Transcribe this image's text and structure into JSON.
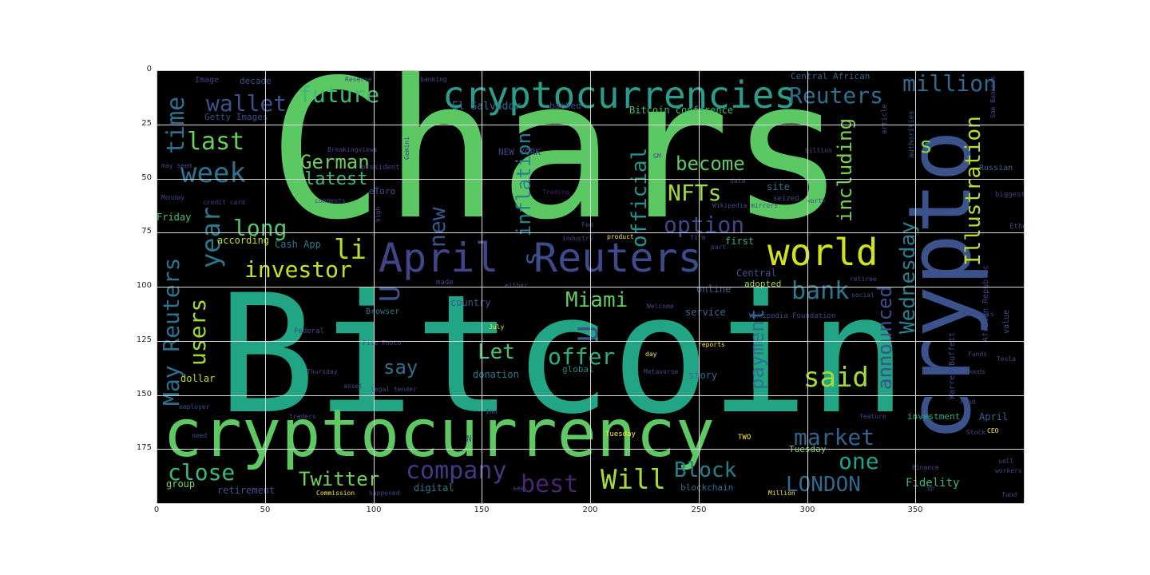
{
  "axes": {
    "x_ticks": [
      "0",
      "50",
      "100",
      "150",
      "200",
      "250",
      "300",
      "350"
    ],
    "y_ticks": [
      "0",
      "25",
      "50",
      "75",
      "100",
      "125",
      "150",
      "175"
    ]
  },
  "wordcloud": {
    "background": "#000000",
    "words": [
      {
        "text": "Chars",
        "color": "#5cc863"
      },
      {
        "text": "Bitcoin",
        "color": "#21a585"
      },
      {
        "text": "crypto",
        "color": "#3b528b"
      },
      {
        "text": "cryptocurrency",
        "color": "#5ec962"
      },
      {
        "text": "cryptocurrencies",
        "color": "#2a9d8c"
      },
      {
        "text": "April",
        "color": "#414487"
      },
      {
        "text": "Reuters",
        "color": "#3e4a89"
      },
      {
        "text": "world",
        "color": "#d2e21b"
      },
      {
        "text": "million",
        "color": "#31688e"
      },
      {
        "text": "Reuters",
        "color": "#2e6f8e"
      },
      {
        "text": "wallet",
        "color": "#3b528b"
      },
      {
        "text": "future",
        "color": "#3fbc73"
      },
      {
        "text": "time",
        "color": "#2c728e"
      },
      {
        "text": "week",
        "color": "#2c728e"
      },
      {
        "text": "last",
        "color": "#6ccd5a"
      },
      {
        "text": "German",
        "color": "#6ece58"
      },
      {
        "text": "latest",
        "color": "#35b779"
      },
      {
        "text": "year",
        "color": "#2a788e"
      },
      {
        "text": "new",
        "color": "#39558c"
      },
      {
        "text": "li",
        "color": "#b5de2b"
      },
      {
        "text": "investor",
        "color": "#c8e020"
      },
      {
        "text": "long",
        "color": "#54c568"
      },
      {
        "text": "option",
        "color": "#3f4788"
      },
      {
        "text": "NFTs",
        "color": "#a2da37"
      },
      {
        "text": "become",
        "color": "#5ec962"
      },
      {
        "text": "official",
        "color": "#1f958b"
      },
      {
        "text": "inflation",
        "color": "#26828e"
      },
      {
        "text": "including",
        "color": "#7ad151"
      },
      {
        "text": "Illustration",
        "color": "#b8de29"
      },
      {
        "text": "Wednesday",
        "color": "#287d8e"
      },
      {
        "text": "s",
        "color": "#7fd34e"
      },
      {
        "text": "Miami",
        "color": "#63cb5f"
      },
      {
        "text": "bank",
        "color": "#2a788e"
      },
      {
        "text": "said",
        "color": "#a8db34"
      },
      {
        "text": "announced",
        "color": "#3b528b"
      },
      {
        "text": "users",
        "color": "#a0da39"
      },
      {
        "text": "May Reuters",
        "color": "#2c728e"
      },
      {
        "text": "Let",
        "color": "#4ac16d"
      },
      {
        "text": "offer",
        "color": "#2ab07f"
      },
      {
        "text": "say",
        "color": "#2e6e8e"
      },
      {
        "text": "payment",
        "color": "#2d718e"
      },
      {
        "text": "market",
        "color": "#33638d"
      },
      {
        "text": "one",
        "color": "#1fa088"
      },
      {
        "text": "close",
        "color": "#3aba76"
      },
      {
        "text": "company",
        "color": "#443983"
      },
      {
        "text": "Block",
        "color": "#27808e"
      },
      {
        "text": "best",
        "color": "#482475"
      },
      {
        "text": "Will",
        "color": "#a5db36"
      },
      {
        "text": "Twitter",
        "color": "#73d056"
      },
      {
        "text": "LONDON",
        "color": "#31688e"
      },
      {
        "text": "U",
        "color": "#3b528b"
      },
      {
        "text": "U",
        "color": "#3b528b"
      },
      {
        "text": "s",
        "color": "#3b528b"
      },
      {
        "text": "Fidelity",
        "color": "#35b779"
      },
      {
        "text": "blockchain",
        "color": "#2f6c8e"
      },
      {
        "text": "retirement",
        "color": "#3a548c"
      },
      {
        "text": "digital",
        "color": "#2a788e"
      },
      {
        "text": "group",
        "color": "#7ad151"
      },
      {
        "text": "Friday",
        "color": "#46c06f"
      },
      {
        "text": "dollar",
        "color": "#c0df25"
      },
      {
        "text": "according",
        "color": "#bddf26"
      },
      {
        "text": "Cash App",
        "color": "#29798e"
      },
      {
        "text": "El Salvador",
        "color": "#2e6f8e"
      },
      {
        "text": "Getty Images",
        "color": "#3d4d8a"
      },
      {
        "text": "Image",
        "color": "#424086"
      },
      {
        "text": "decade",
        "color": "#3b518b"
      },
      {
        "text": "Central African",
        "color": "#33638d"
      },
      {
        "text": "Bitcoin conference",
        "color": "#3fbc73"
      },
      {
        "text": "backed",
        "color": "#404588"
      },
      {
        "text": "NEW YORK",
        "color": "#3e4989"
      },
      {
        "text": "president",
        "color": "#433e85"
      },
      {
        "text": "eToro",
        "color": "#3b528b"
      },
      {
        "text": "site",
        "color": "#2c728e"
      },
      {
        "text": "seized",
        "color": "#3e4989"
      },
      {
        "text": "first",
        "color": "#2fb47c"
      },
      {
        "text": "Central",
        "color": "#3b528b"
      },
      {
        "text": "adopted",
        "color": "#9dd93b"
      },
      {
        "text": "online",
        "color": "#32648e"
      },
      {
        "text": "service",
        "color": "#2e6e8e"
      },
      {
        "text": "country",
        "color": "#3a538b"
      },
      {
        "text": "story",
        "color": "#2e6f8e"
      },
      {
        "text": "global",
        "color": "#24868e"
      },
      {
        "text": "donation",
        "color": "#2a788e"
      },
      {
        "text": "investment",
        "color": "#27ad81"
      },
      {
        "text": "Tuesday",
        "color": "#6ece58"
      },
      {
        "text": "April",
        "color": "#34618d"
      },
      {
        "text": "value",
        "color": "#3b528b"
      },
      {
        "text": "Russian",
        "color": "#31688e"
      },
      {
        "text": "biggest",
        "color": "#453781"
      },
      {
        "text": "Warren Buffett",
        "color": "#3e4a89"
      },
      {
        "text": "African Republic",
        "color": "#433e85"
      },
      {
        "text": "Ethereum",
        "color": "#3e4a89"
      },
      {
        "text": "Trading",
        "color": "#48186a"
      },
      {
        "text": "product",
        "color": "#fde725"
      },
      {
        "text": "industry",
        "color": "#3e4989"
      },
      {
        "text": "Browser",
        "color": "#2a788e"
      },
      {
        "text": "Federal",
        "color": "#3e4a89"
      },
      {
        "text": "Commission",
        "color": "#fde725"
      },
      {
        "text": "happened",
        "color": "#3e4a89"
      },
      {
        "text": "traders",
        "color": "#3e4a89"
      },
      {
        "text": "employer",
        "color": "#3b528b"
      },
      {
        "text": "legal tender",
        "color": "#3e4a89"
      },
      {
        "text": "Thursday",
        "color": "#3e4a89"
      },
      {
        "text": "Monday",
        "color": "#3e4a89"
      },
      {
        "text": "credit card",
        "color": "#433e85"
      },
      {
        "text": "Breakingviews",
        "color": "#3e4a89"
      },
      {
        "text": "Wikipedia Foundation",
        "color": "#3e4a89"
      },
      {
        "text": "Wikipedia mirrors",
        "color": "#3e4a89"
      },
      {
        "text": "social",
        "color": "#3b528b"
      },
      {
        "text": "article",
        "color": "#3e4a89"
      },
      {
        "text": "authorities",
        "color": "#3b528b"
      },
      {
        "text": "billion",
        "color": "#3e4a89"
      },
      {
        "text": "feature",
        "color": "#3e4a89"
      },
      {
        "text": "fund",
        "color": "#3e4a89"
      },
      {
        "text": "reports",
        "color": "#fde725"
      },
      {
        "text": "firm",
        "color": "#3e4a89"
      },
      {
        "text": "Welcome",
        "color": "#3e4a89"
      },
      {
        "text": "made",
        "color": "#3e4a89"
      },
      {
        "text": "either",
        "color": "#3e4a89"
      },
      {
        "text": "Reserve",
        "color": "#3e4a89"
      },
      {
        "text": "banking",
        "color": "#3e4a89"
      },
      {
        "text": "comments",
        "color": "#3e4a89"
      },
      {
        "text": "high",
        "color": "#3e4a89"
      },
      {
        "text": "worth",
        "color": "#3e4a89"
      },
      {
        "text": "File Photo",
        "color": "#3e4a89"
      },
      {
        "text": "July",
        "color": "#fde725"
      },
      {
        "text": "day",
        "color": "#fde725"
      },
      {
        "text": "workers may",
        "color": "#3e4a89"
      },
      {
        "text": "Gemini",
        "color": "#3e4a89"
      },
      {
        "text": "Funds",
        "color": "#3e4a89"
      },
      {
        "text": "CEO",
        "color": "#fde725"
      },
      {
        "text": "TWO",
        "color": "#fde725"
      },
      {
        "text": "Tesla",
        "color": "#3e4a89"
      },
      {
        "text": "may seem",
        "color": "#3e4a89"
      },
      {
        "text": "need",
        "color": "#3e4a89"
      },
      {
        "text": "N",
        "color": "#3e4a89"
      },
      {
        "text": "Fed",
        "color": "#3e4a89"
      },
      {
        "text": "Million",
        "color": "#fde725"
      },
      {
        "text": "Ind",
        "color": "#3e4a89"
      },
      {
        "text": "see",
        "color": "#3e4a89"
      },
      {
        "text": "GM",
        "color": "#3e4a89"
      },
      {
        "text": "asset",
        "color": "#3e4a89"
      },
      {
        "text": "Goods",
        "color": "#3e4a89"
      },
      {
        "text": "Metaverse",
        "color": "#3e4a89"
      },
      {
        "text": "Tuesday",
        "color": "#fde725"
      },
      {
        "text": "sell",
        "color": "#3e4a89"
      },
      {
        "text": "Binance",
        "color": "#3e4a89"
      },
      {
        "text": "data",
        "color": "#3e4a89"
      },
      {
        "text": "Sp",
        "color": "#3e4a89"
      },
      {
        "text": "Fund",
        "color": "#3e4a89"
      },
      {
        "text": "retiree",
        "color": "#3e4a89"
      },
      {
        "text": "part",
        "color": "#3e4a89"
      },
      {
        "text": "Sam Bankman",
        "color": "#3e4a89"
      },
      {
        "text": "Fundrais",
        "color": "#3e4a89"
      },
      {
        "text": "Stock",
        "color": "#3e4a89"
      }
    ]
  }
}
